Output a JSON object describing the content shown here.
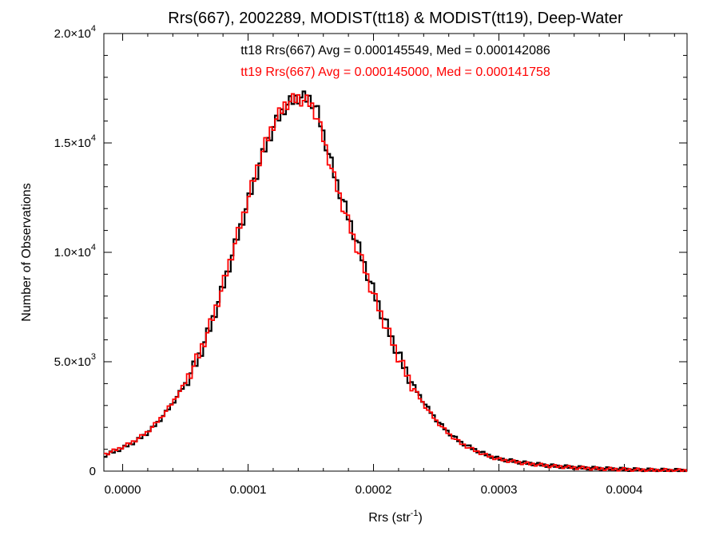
{
  "chart_data": {
    "type": "line",
    "title": "Rrs(667), 2002289, MODIST(tt18) & MODIST(tt19), Deep-Water",
    "xlabel_main": "Rrs (str",
    "xlabel_sup": "-1",
    "xlabel_close": ")",
    "ylabel": "Number of Observations",
    "xlim": [
      -1.5e-05,
      0.00045
    ],
    "ylim": [
      0,
      20000
    ],
    "x_ticks": [
      {
        "value": 0.0,
        "label": "0.0000"
      },
      {
        "value": 0.0001,
        "label": "0.0001"
      },
      {
        "value": 0.0002,
        "label": "0.0002"
      },
      {
        "value": 0.0003,
        "label": "0.0003"
      },
      {
        "value": 0.0004,
        "label": "0.0004"
      }
    ],
    "y_ticks": [
      {
        "value": 0,
        "mant": "0",
        "exp": ""
      },
      {
        "value": 5000,
        "mant": "5.0×10",
        "exp": "3"
      },
      {
        "value": 10000,
        "mant": "1.0×10",
        "exp": "4"
      },
      {
        "value": 15000,
        "mant": "1.5×10",
        "exp": "4"
      },
      {
        "value": 20000,
        "mant": "2.0×10",
        "exp": "4"
      }
    ],
    "annotations": [
      "tt18 Rrs(667) Avg = 0.000145549, Med = 0.000142086",
      "tt19 Rrs(667) Avg = 0.000145000, Med = 0.000141758"
    ],
    "series": [
      {
        "color": "#000000",
        "x": [
          -1.5e-05,
          0.0,
          1e-05,
          2e-05,
          3e-05,
          4e-05,
          5e-05,
          6e-05,
          7e-05,
          8e-05,
          9e-05,
          0.0001,
          0.00011,
          0.00012,
          0.00013,
          0.00014,
          0.00015,
          0.000155,
          0.00016,
          0.00017,
          0.00018,
          0.00019,
          0.0002,
          0.00021,
          0.00022,
          0.00023,
          0.00024,
          0.00025,
          0.00026,
          0.00027,
          0.00028,
          0.00029,
          0.0003,
          0.00032,
          0.00034,
          0.00036,
          0.00038,
          0.0004,
          0.00042,
          0.00045
        ],
        "y": [
          700,
          1050,
          1350,
          1750,
          2350,
          3100,
          4000,
          5100,
          6600,
          8400,
          10400,
          12300,
          14200,
          15700,
          16700,
          17100,
          17000,
          16500,
          15400,
          13300,
          11600,
          9900,
          8200,
          6700,
          5300,
          4100,
          3150,
          2350,
          1750,
          1300,
          1000,
          750,
          560,
          380,
          250,
          170,
          120,
          80,
          50,
          30
        ]
      },
      {
        "color": "#ff0000",
        "x": [
          -1.5e-05,
          0.0,
          1e-05,
          2e-05,
          3e-05,
          4e-05,
          5e-05,
          6e-05,
          7e-05,
          8e-05,
          9e-05,
          0.0001,
          0.00011,
          0.00012,
          0.00013,
          0.00014,
          0.00015,
          0.000155,
          0.00016,
          0.00017,
          0.00018,
          0.00019,
          0.0002,
          0.00021,
          0.00022,
          0.00023,
          0.00024,
          0.00025,
          0.00026,
          0.00027,
          0.00028,
          0.00029,
          0.0003,
          0.00032,
          0.00034,
          0.00036,
          0.00038,
          0.0004,
          0.00042,
          0.00045
        ],
        "y": [
          750,
          1100,
          1400,
          1800,
          2400,
          3150,
          4050,
          5200,
          6700,
          8500,
          10500,
          12450,
          14400,
          15850,
          16800,
          17050,
          16800,
          16200,
          15200,
          13100,
          11350,
          9700,
          8050,
          6600,
          5200,
          4000,
          3050,
          2300,
          1700,
          1260,
          960,
          720,
          540,
          360,
          240,
          160,
          110,
          75,
          45,
          25
        ]
      }
    ]
  }
}
